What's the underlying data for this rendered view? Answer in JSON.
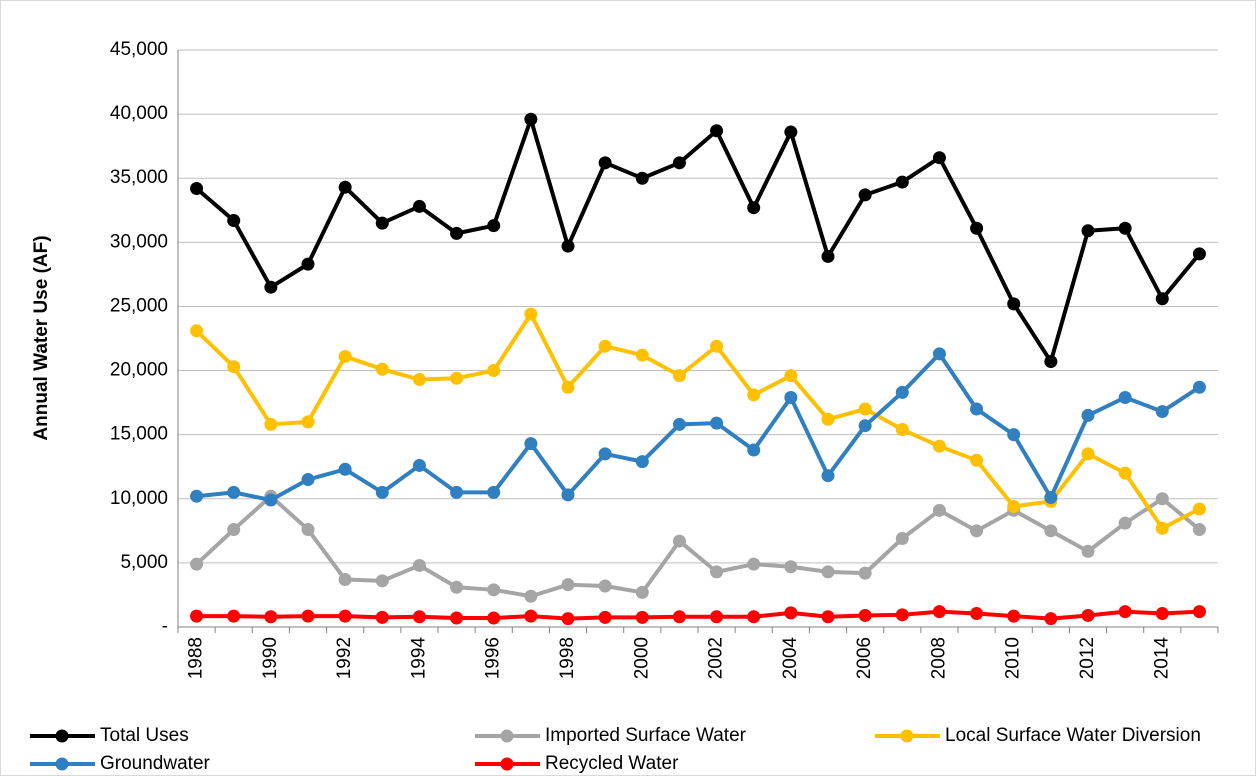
{
  "chart_data": {
    "type": "line",
    "y_label": "Annual Water Use (AF)",
    "categories": [
      "1988",
      null,
      "1990",
      null,
      "1992",
      null,
      "1994",
      null,
      "1996",
      null,
      "1998",
      null,
      "2000",
      null,
      "2002",
      null,
      "2004",
      null,
      "2006",
      null,
      "2008",
      null,
      "2010",
      null,
      "2012",
      null,
      "2014",
      null
    ],
    "series": [
      {
        "name": "Total Uses",
        "color": "#000000",
        "values": [
          34200,
          31700,
          26500,
          28300,
          34300,
          31500,
          32800,
          30700,
          31300,
          39600,
          29700,
          36200,
          35000,
          36200,
          38700,
          32700,
          38600,
          28900,
          33700,
          34700,
          36600,
          31100,
          25200,
          20700,
          30900,
          31100,
          25600,
          29100
        ]
      },
      {
        "name": "Imported Surface Water",
        "color": "#a5a5a5",
        "values": [
          4900,
          7600,
          10200,
          7600,
          3700,
          3600,
          4800,
          3100,
          2900,
          2400,
          3300,
          3200,
          2700,
          6700,
          4300,
          4900,
          4700,
          4300,
          4200,
          6900,
          9100,
          7500,
          9100,
          7500,
          5900,
          8100,
          10000,
          7600
        ]
      },
      {
        "name": "Local Surface Water Diversion",
        "color": "#ffc000",
        "values": [
          23100,
          20300,
          15800,
          16000,
          21100,
          20100,
          19300,
          19400,
          20000,
          24400,
          18700,
          21900,
          21200,
          19600,
          21900,
          18100,
          19600,
          16200,
          17000,
          15400,
          14100,
          13000,
          9400,
          9800,
          13500,
          12000,
          7700,
          9200
        ]
      },
      {
        "name": "Groundwater",
        "color": "#2f7fc1",
        "values": [
          10200,
          10500,
          9900,
          11500,
          12300,
          10500,
          12600,
          10500,
          10500,
          14300,
          10300,
          13500,
          12900,
          15800,
          15900,
          13800,
          17900,
          11800,
          15700,
          18300,
          21300,
          17000,
          15000,
          10100,
          16500,
          17900,
          16800,
          18700
        ]
      },
      {
        "name": "Recycled Water",
        "color": "#ff0000",
        "values": [
          850,
          850,
          800,
          850,
          850,
          750,
          800,
          700,
          700,
          850,
          650,
          750,
          750,
          800,
          800,
          800,
          1100,
          800,
          900,
          950,
          1200,
          1050,
          850,
          650,
          900,
          1200,
          1050,
          1200
        ]
      }
    ],
    "ylim": [
      0,
      45000
    ],
    "yticks": [
      {
        "value": 0,
        "label": "-"
      },
      {
        "value": 5000,
        "label": "5,000"
      },
      {
        "value": 10000,
        "label": "10,000"
      },
      {
        "value": 15000,
        "label": "15,000"
      },
      {
        "value": 20000,
        "label": "20,000"
      },
      {
        "value": 25000,
        "label": "25,000"
      },
      {
        "value": 30000,
        "label": "30,000"
      },
      {
        "value": 35000,
        "label": "35,000"
      },
      {
        "value": 40000,
        "label": "40,000"
      },
      {
        "value": 45000,
        "label": "45,000"
      }
    ],
    "grid": true
  }
}
